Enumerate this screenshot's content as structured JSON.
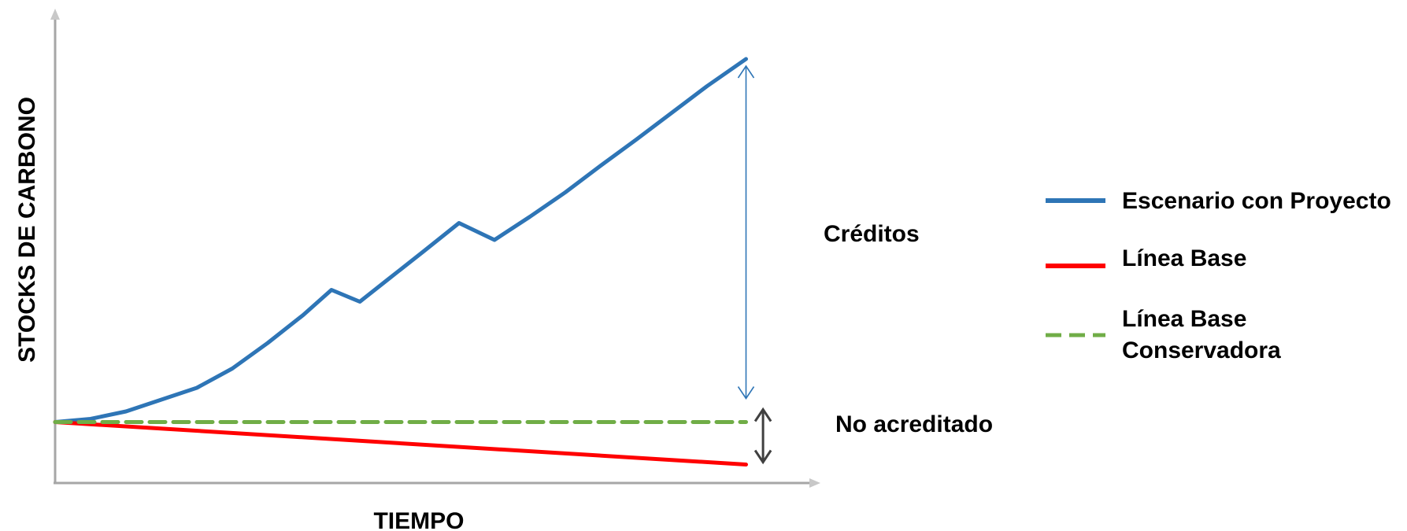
{
  "chart_data": {
    "type": "line",
    "xlabel": "TIEMPO",
    "ylabel": "STOCKS DE CARBONO",
    "xlim": [
      0,
      100
    ],
    "ylim": [
      0,
      100
    ],
    "grid": false,
    "legend_position": "right",
    "series": [
      {
        "name": "Escenario con Proyecto",
        "color": "#2E75B6",
        "style": "solid",
        "x": [
          0,
          5,
          10,
          15,
          20,
          25,
          30,
          35,
          39,
          43,
          47,
          52,
          57,
          62,
          67,
          72,
          77,
          82,
          87,
          92,
          97.5
        ],
        "y": [
          15.5,
          16.3,
          18.2,
          21.2,
          24.2,
          29.1,
          35.6,
          42.7,
          49.1,
          46.1,
          51.8,
          58.9,
          66.1,
          61.8,
          67.7,
          73.9,
          80.7,
          87.3,
          94.1,
          100.9,
          107.8
        ]
      },
      {
        "name": "Línea Base",
        "color": "#FF0000",
        "style": "solid",
        "x": [
          0,
          97.5
        ],
        "y": [
          15.5,
          4.7
        ]
      },
      {
        "name": "Línea Base Conservadora",
        "color": "#70AD47",
        "style": "dashed",
        "x": [
          0,
          97.5
        ],
        "y": [
          15.5,
          15.5
        ]
      }
    ],
    "annotations": [
      {
        "text": "Créditos",
        "arrow_x": 97.5,
        "y_from": 21.5,
        "y_to": 106
      },
      {
        "text": "No acreditado",
        "arrow_x": 99.9,
        "y_from": 5.3,
        "y_to": 18.7
      }
    ]
  }
}
